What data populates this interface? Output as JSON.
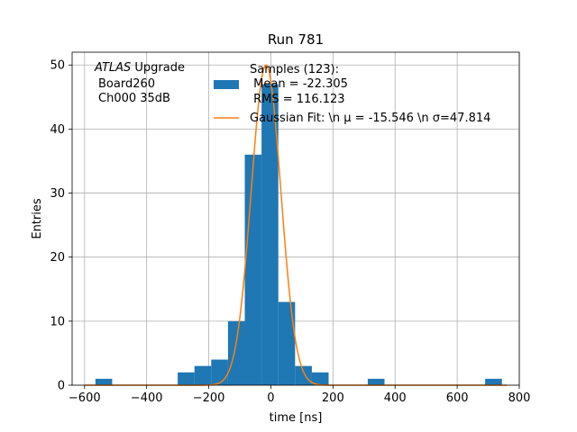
{
  "chart_data": {
    "type": "bar",
    "title": "Run 781",
    "xlabel": "time [ns]",
    "ylabel": "Entries",
    "xlim": [
      -640,
      800
    ],
    "ylim": [
      0,
      52
    ],
    "grid": true,
    "x_ticks": [
      -600,
      -400,
      -200,
      0,
      200,
      400,
      600,
      800
    ],
    "y_ticks": [
      0,
      10,
      20,
      30,
      40,
      50
    ],
    "bin_width": 54,
    "histogram": {
      "name": "Samples (123):\n Mean = -22.305\n RMS = 116.123",
      "color": "#1f77b4",
      "bins": [
        {
          "left": -565,
          "count": 1
        },
        {
          "left": -300,
          "count": 2
        },
        {
          "left": -246,
          "count": 3
        },
        {
          "left": -192,
          "count": 4
        },
        {
          "left": -138,
          "count": 10
        },
        {
          "left": -84,
          "count": 36
        },
        {
          "left": -30,
          "count": 47
        },
        {
          "left": 24,
          "count": 13
        },
        {
          "left": 78,
          "count": 3
        },
        {
          "left": 132,
          "count": 2
        },
        {
          "left": 312,
          "count": 1
        },
        {
          "left": 690,
          "count": 1
        }
      ]
    },
    "fit": {
      "name": "Gaussian Fit: \\n μ = -15.546 \\n σ=47.814",
      "color": "#ff7f0e",
      "mu": -15.546,
      "sigma": 47.814,
      "amplitude": 50
    },
    "legend_placement": "upper-right",
    "annotation": {
      "line1_italic": "ATLAS",
      "line1_rest": " Upgrade",
      "line2": "Board260",
      "line3": "Ch000 35dB"
    }
  }
}
